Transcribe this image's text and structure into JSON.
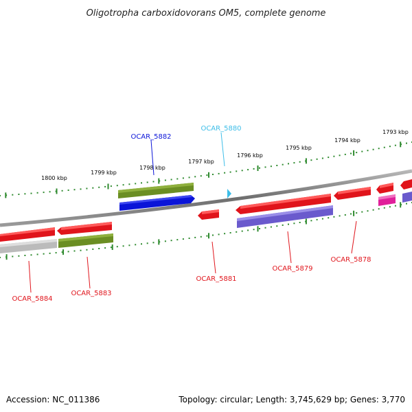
{
  "title": "Oligotropha carboxidovorans OM5, complete genome",
  "footer": {
    "accession": "Accession: NC_011386",
    "topology": "Topology: circular; Length: 3,745,629 bp; Genes: 3,770"
  },
  "ruler": {
    "tick_labels": [
      "1800 kbp",
      "1799 kbp",
      "1798 kbp",
      "1797 kbp",
      "1796 kbp",
      "1795 kbp",
      "1794 kbp",
      "1793 kbp"
    ]
  },
  "genes": [
    {
      "label": "OCAR_5884",
      "strand": "reverse",
      "color": "#e0141b"
    },
    {
      "label": "OCAR_5883",
      "strand": "reverse",
      "color": "#e0141b"
    },
    {
      "label": "OCAR_5882",
      "strand": "forward",
      "color": "#0a14d8"
    },
    {
      "label": "OCAR_5881",
      "strand": "reverse",
      "color": "#e0141b"
    },
    {
      "label": "OCAR_5880",
      "strand": "forward",
      "color": "#3cbde8"
    },
    {
      "label": "OCAR_5879",
      "strand": "reverse",
      "color": "#e0141b"
    },
    {
      "label": "OCAR_5878",
      "strand": "reverse",
      "color": "#e0141b"
    }
  ],
  "colors": {
    "backbone": "#7a7a7a",
    "ruler_dots": "#2e8a2e",
    "cds_red": "#e0141b",
    "cds_blue": "#0a14d8",
    "cds_cyan": "#3cbde8",
    "feature_green": "#6b8e23",
    "feature_purple": "#6a5acd",
    "feature_grey": "#bbbbbb",
    "feature_magenta": "#e0209a"
  }
}
